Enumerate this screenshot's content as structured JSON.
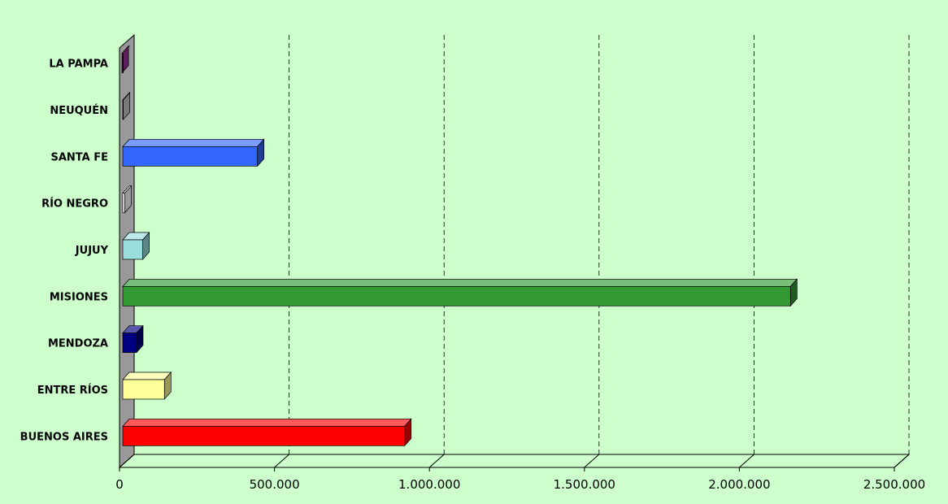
{
  "colors": {
    "background": "#ccffcc",
    "wall": "#999999",
    "floor": "#808080",
    "gridline": "#000000"
  },
  "chart_data": {
    "type": "bar",
    "orientation": "horizontal",
    "three_d": true,
    "categories": [
      "BUENOS AIRES",
      "ENTRE RÍOS",
      "MENDOZA",
      "MISIONES",
      "JUJUY",
      "RÍO NEGRO",
      "SANTA FE",
      "NEUQUÉN",
      "LA PAMPA"
    ],
    "values": [
      920000,
      145000,
      55000,
      2165000,
      75000,
      17000,
      445000,
      12000,
      8000
    ],
    "bar_colors": [
      "#ff0000",
      "#ffff99",
      "#000080",
      "#339933",
      "#99dddd",
      "#ffffff",
      "#3366ff",
      "#cccccc",
      "#993399"
    ],
    "xlim": [
      0,
      2500000
    ],
    "xticks": [
      0,
      500000,
      1000000,
      1500000,
      2000000,
      2500000
    ],
    "xtick_labels": [
      "0",
      "500.000",
      "1.000.000",
      "1.500.000",
      "2.000.000",
      "2.500.000"
    ],
    "grid": "vertical-dashed",
    "legend": "none",
    "title": "",
    "xlabel": "",
    "ylabel": ""
  }
}
